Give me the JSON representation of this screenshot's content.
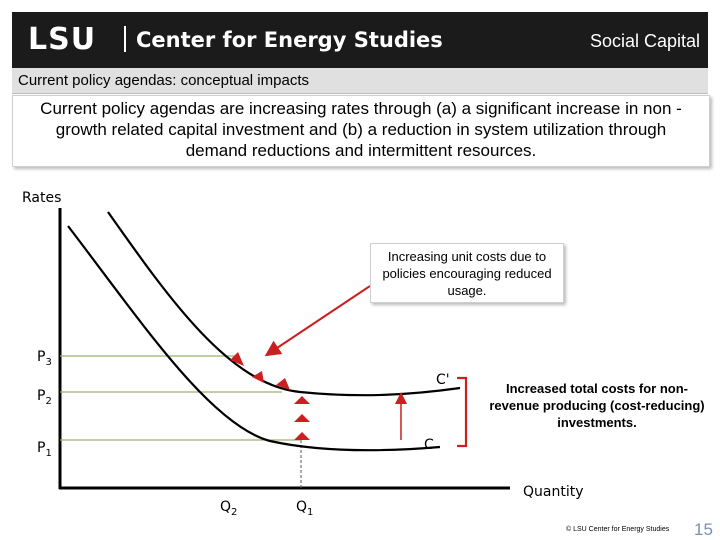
{
  "header": {
    "logo": "LSU",
    "center": "Center for Energy Studies",
    "section": "Social Capital"
  },
  "subtitle": "Current policy agendas: conceptual impacts",
  "statement": "Current policy agendas are increasing rates through (a) a significant increase in non -growth related capital investment and (b) a reduction in system utilization through demand reductions and intermittent resources.",
  "diagram": {
    "y_axis_label": "Rates",
    "x_axis_label": "Quantity",
    "price_labels": {
      "p3": "P",
      "p3_sub": "3",
      "p2": "P",
      "p2_sub": "2",
      "p1": "P",
      "p1_sub": "1"
    },
    "quantity_labels": {
      "q2": "Q",
      "q2_sub": "2",
      "q1": "Q",
      "q1_sub": "1"
    },
    "curve_upper_label": "C'",
    "curve_lower_label": "C",
    "callout": "Increasing unit costs due to policies encouraging reduced usage.",
    "note": "Increased total costs for non-revenue producing (cost-reducing) investments.",
    "colors": {
      "arrow": "#cc1f1f",
      "axis": "#000000",
      "guide": "#9ab06a"
    }
  },
  "footer": {
    "credit": "© LSU Center for Energy Studies",
    "page": "15"
  }
}
